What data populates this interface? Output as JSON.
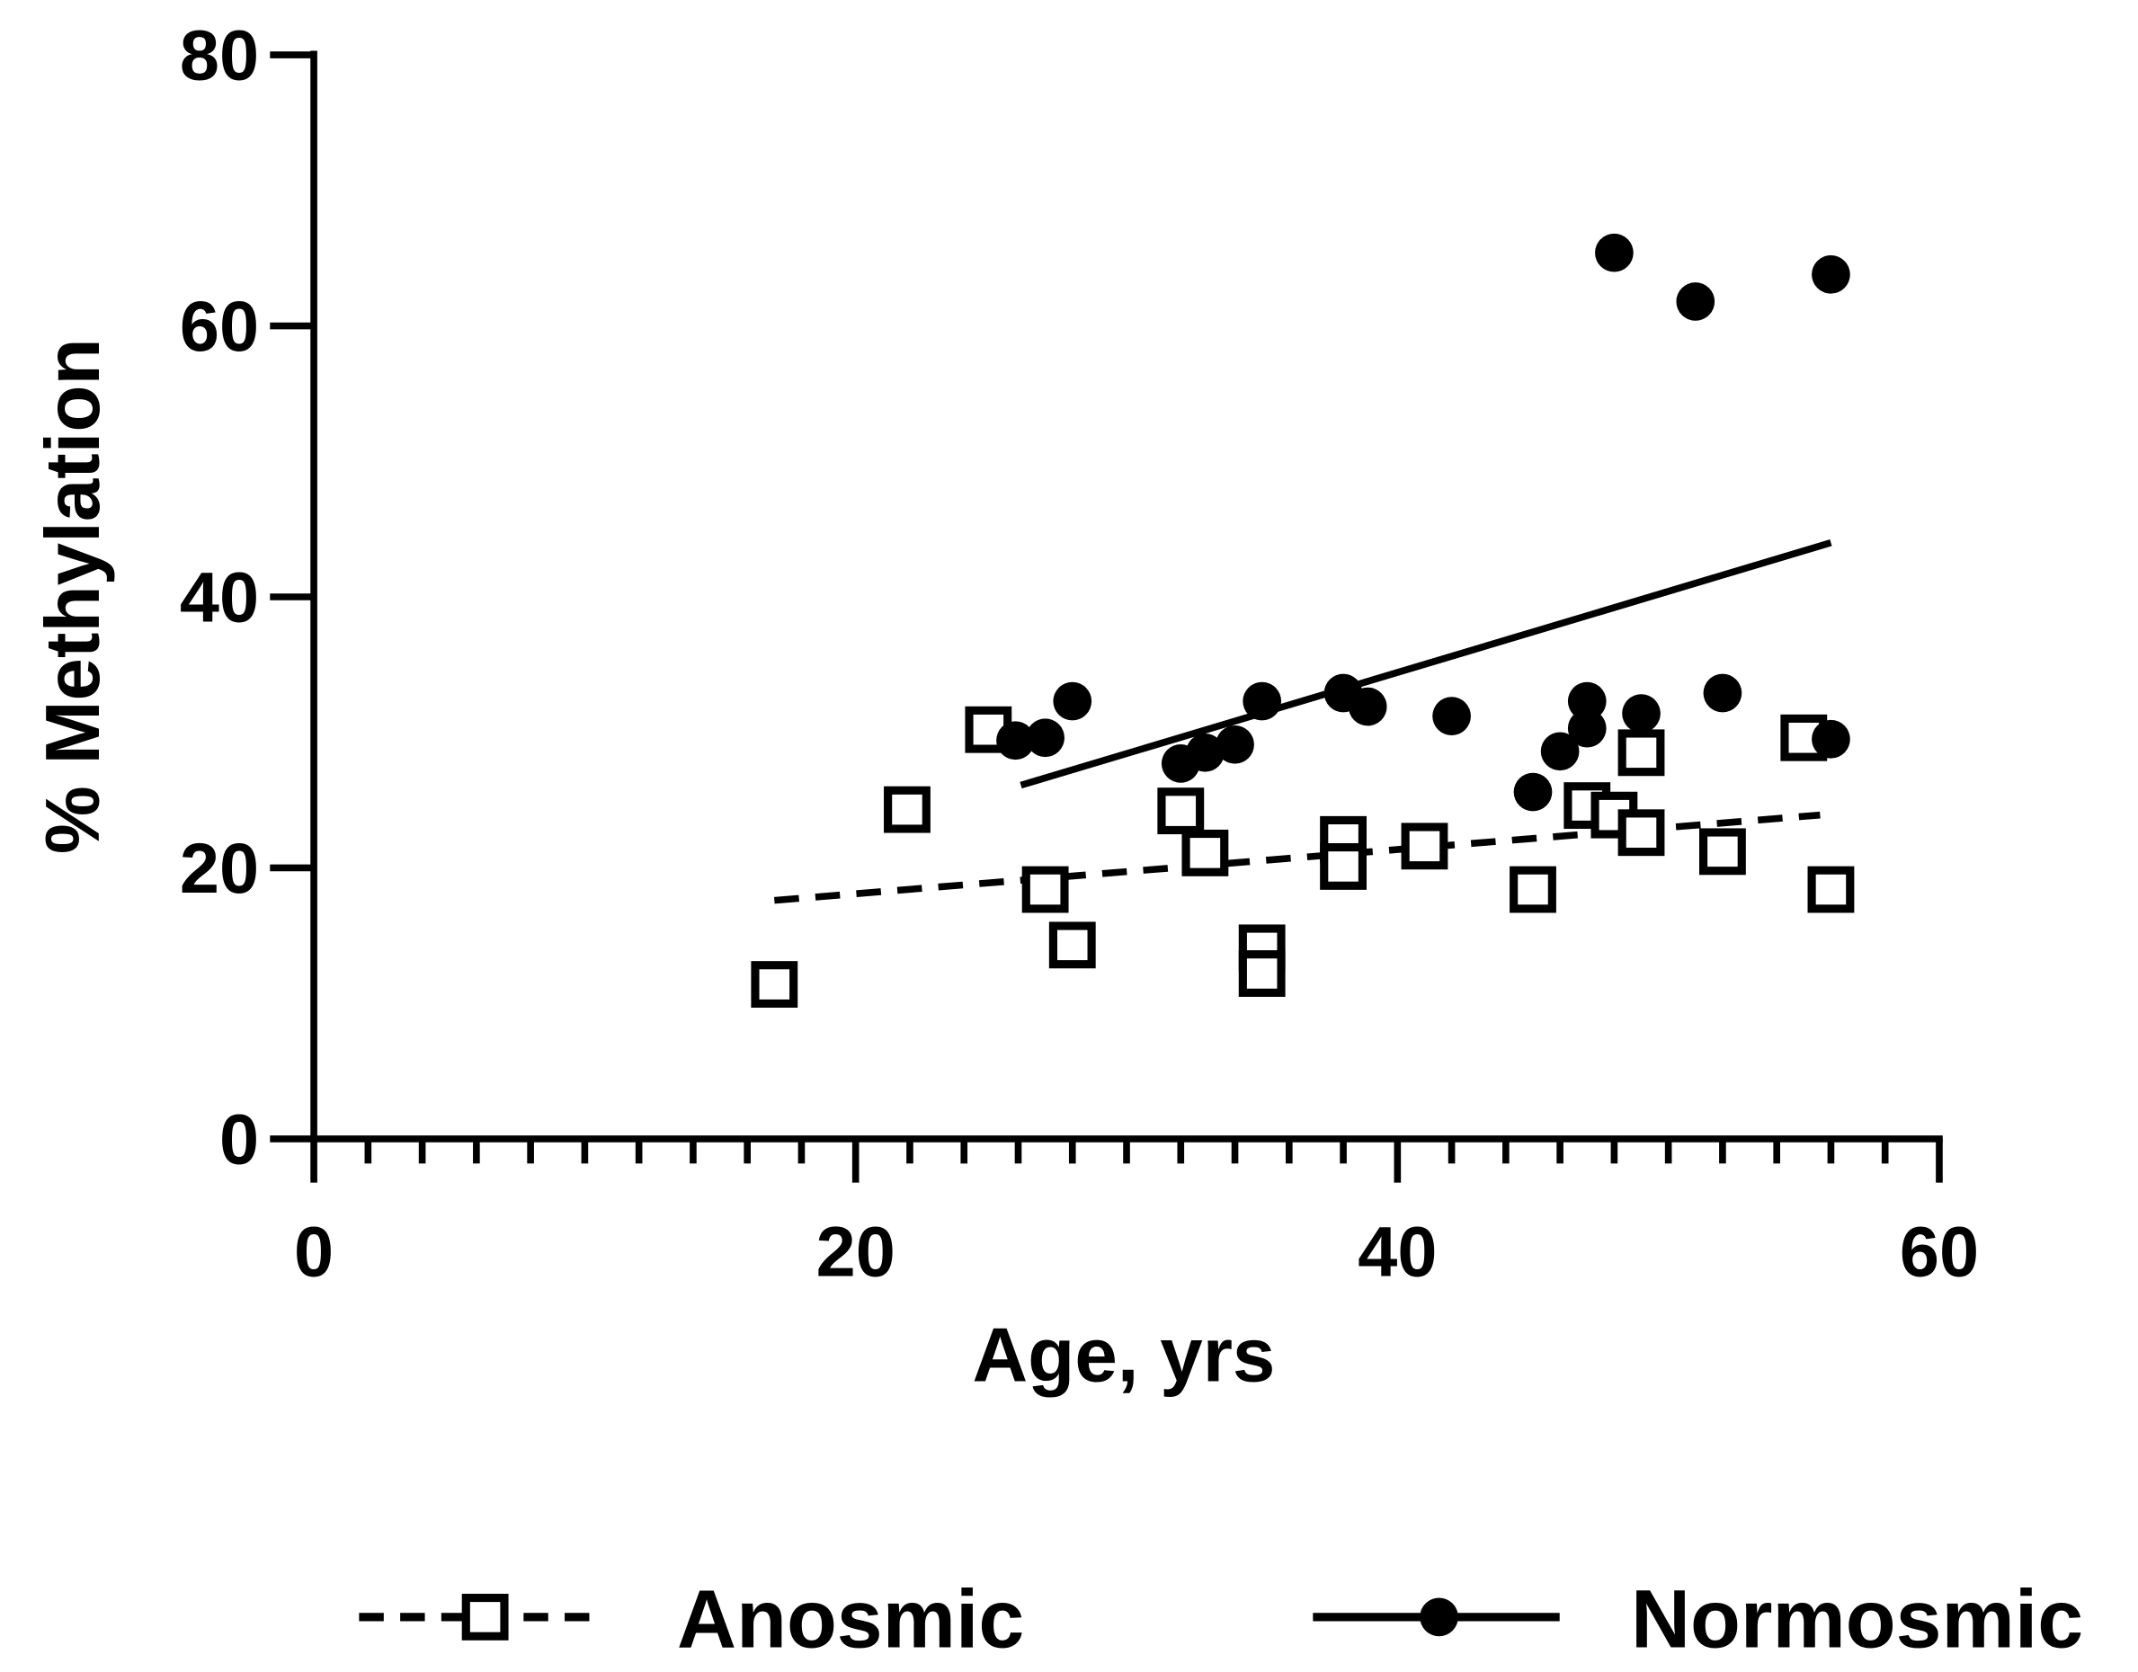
{
  "chart_data": {
    "type": "scatter",
    "xlabel": "Age, yrs",
    "ylabel": "% Methylation",
    "xlim": [
      0,
      60
    ],
    "ylim": [
      0,
      80
    ],
    "xticks": [
      0,
      20,
      40,
      60
    ],
    "yticks": [
      0,
      20,
      40,
      60,
      80
    ],
    "series": [
      {
        "name": "Anosmic",
        "color": "#000000",
        "marker": "square",
        "line": "dashed",
        "x": [
          17.0,
          21.9,
          24.9,
          27.0,
          28.0,
          32.0,
          32.9,
          35.0,
          35.0,
          38.0,
          38.0,
          41.0,
          45.0,
          47.0,
          48.0,
          49.0,
          49.0,
          52.0,
          55.0,
          56.0
        ],
        "values": [
          11.4,
          24.3,
          30.2,
          18.4,
          14.3,
          24.2,
          21.1,
          14.1,
          12.2,
          22.1,
          20.1,
          21.6,
          18.4,
          24.6,
          23.9,
          28.5,
          22.6,
          21.2,
          29.6,
          18.4
        ],
        "fit": {
          "x": [
            17.0,
            55.6
          ],
          "values": [
            17.6,
            23.9
          ]
        }
      },
      {
        "name": "Normosmic",
        "color": "#000000",
        "marker": "circle",
        "line": "solid",
        "x": [
          25.9,
          27.0,
          28.0,
          32.0,
          32.9,
          34.0,
          35.0,
          38.0,
          38.9,
          42.0,
          45.0,
          46.0,
          47.0,
          47.0,
          48.0,
          49.0,
          51.0,
          52.0,
          56.0,
          56.0
        ],
        "values": [
          29.4,
          29.6,
          32.3,
          27.7,
          28.5,
          29.1,
          32.3,
          32.9,
          31.9,
          31.2,
          25.6,
          28.6,
          32.3,
          30.3,
          65.4,
          31.4,
          61.8,
          32.9,
          63.8,
          29.5
        ],
        "fit": {
          "x": [
            26.1,
            56.0
          ],
          "values": [
            26.1,
            44.0
          ]
        }
      }
    ]
  }
}
